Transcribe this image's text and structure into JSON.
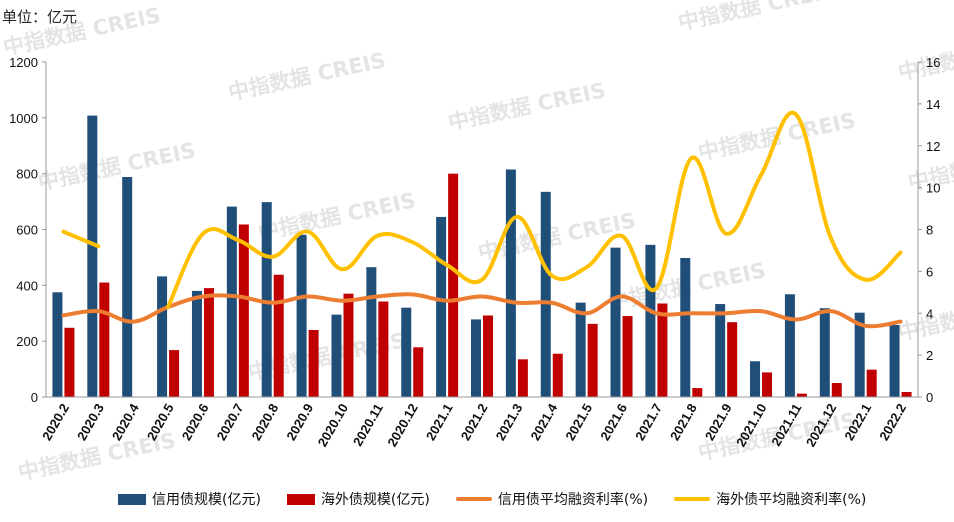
{
  "unit_label": "单位：亿元",
  "watermark": "中指数据 CREIS",
  "colors": {
    "credit_bond": "#1f4e79",
    "overseas_bond": "#c00000",
    "credit_rate": "#ed7d31",
    "overseas_rate": "#ffc000",
    "axis": "#999999"
  },
  "chart_data": {
    "type": "bar",
    "categories": [
      "2020.2",
      "2020.3",
      "2020.4",
      "2020.5",
      "2020.6",
      "2020.7",
      "2020.8",
      "2020.9",
      "2020.10",
      "2020.11",
      "2020.12",
      "2021.1",
      "2021.2",
      "2021.3",
      "2021.4",
      "2021.5",
      "2021.6",
      "2021.7",
      "2021.8",
      "2021.9",
      "2021.10",
      "2021.11",
      "2021.12",
      "2022.1",
      "2022.2"
    ],
    "series": [
      {
        "name": "信用债规模(亿元)",
        "type": "bar",
        "axis": "left",
        "values": [
          375,
          1008,
          788,
          432,
          380,
          682,
          698,
          581,
          295,
          465,
          320,
          645,
          278,
          815,
          735,
          338,
          535,
          545,
          498,
          333,
          128,
          368,
          318,
          302,
          258
        ]
      },
      {
        "name": "海外债规模(亿元)",
        "type": "bar",
        "axis": "left",
        "values": [
          248,
          410,
          0,
          168,
          390,
          618,
          438,
          240,
          370,
          342,
          178,
          800,
          292,
          135,
          155,
          262,
          290,
          335,
          32,
          268,
          88,
          12,
          50,
          98,
          18
        ]
      },
      {
        "name": "信用债平均融资利率(%)",
        "type": "line",
        "axis": "right",
        "values": [
          3.9,
          4.1,
          3.6,
          4.3,
          4.8,
          4.8,
          4.5,
          4.8,
          4.6,
          4.8,
          4.9,
          4.6,
          4.8,
          4.5,
          4.5,
          4.0,
          4.8,
          4.0,
          4.0,
          4.0,
          4.1,
          3.7,
          4.1,
          3.4,
          3.6
        ]
      },
      {
        "name": "海外债平均融资利率(%)",
        "type": "line",
        "axis": "right",
        "values": [
          7.9,
          7.2,
          null,
          4.3,
          7.8,
          7.5,
          6.7,
          7.9,
          6.1,
          7.7,
          7.4,
          6.3,
          5.6,
          8.6,
          5.8,
          6.2,
          7.7,
          5.2,
          11.4,
          7.8,
          10.6,
          13.5,
          7.6,
          5.6,
          6.9
        ]
      }
    ],
    "ylim_left": [
      0,
      1200
    ],
    "yticks_left": [
      0,
      200,
      400,
      600,
      800,
      1000,
      1200
    ],
    "ylim_right": [
      0,
      16
    ],
    "yticks_right": [
      0,
      2,
      4,
      6,
      8,
      10,
      12,
      14,
      16
    ],
    "legend": "bottom",
    "grid": false
  }
}
